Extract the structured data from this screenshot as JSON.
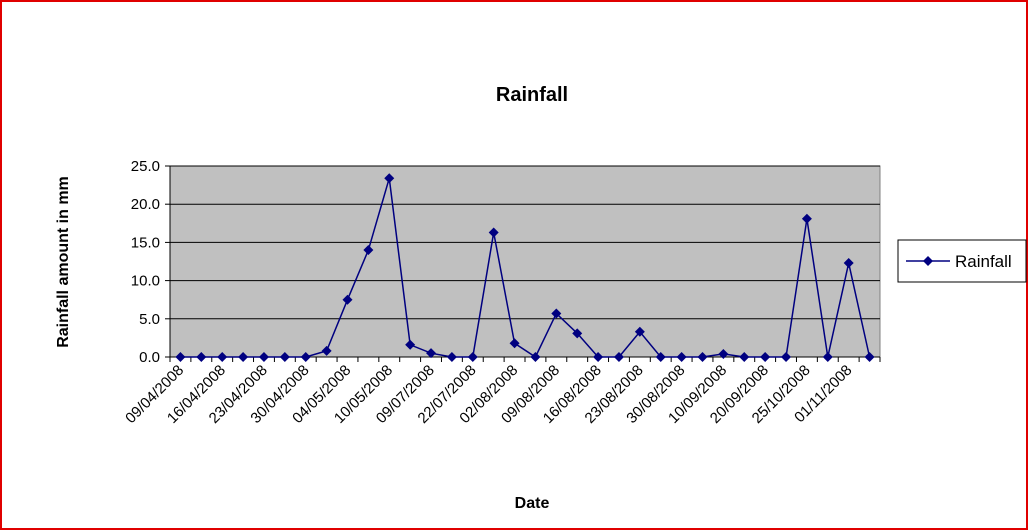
{
  "chart_data": {
    "type": "line",
    "title": "Rainfall",
    "x_label": "Date",
    "y_label": "Rainfall amount in mm",
    "categories": [
      "09/04/2008",
      null,
      "16/04/2008",
      null,
      "23/04/2008",
      null,
      "30/04/2008",
      null,
      "04/05/2008",
      null,
      "10/05/2008",
      null,
      "09/07/2008",
      null,
      "22/07/2008",
      null,
      "02/08/2008",
      null,
      "09/08/2008",
      null,
      "16/08/2008",
      null,
      "23/08/2008",
      null,
      "30/08/2008",
      null,
      "10/09/2008",
      null,
      "20/09/2008",
      null,
      "25/10/2008",
      null,
      "01/11/2008",
      null
    ],
    "series": [
      {
        "name": "Rainfall",
        "color": "#000080",
        "values": [
          0,
          0,
          0,
          0,
          0,
          0,
          0,
          0.8,
          7.5,
          14,
          23.4,
          1.6,
          0.5,
          0,
          0,
          16.3,
          1.8,
          0,
          5.7,
          3.1,
          0,
          0,
          3.3,
          0,
          0,
          0,
          0.4,
          0,
          0,
          0,
          18.1,
          0,
          12.3,
          0
        ]
      }
    ],
    "ylim": [
      0,
      25
    ],
    "yticks": [
      {
        "value": 0,
        "label": "0.0"
      },
      {
        "value": 5,
        "label": "5.0"
      },
      {
        "value": 10,
        "label": "10.0"
      },
      {
        "value": 15,
        "label": "15.0"
      },
      {
        "value": 20,
        "label": "20.0"
      },
      {
        "value": 25,
        "label": "25.0"
      }
    ],
    "grid": true,
    "legend": "right"
  }
}
